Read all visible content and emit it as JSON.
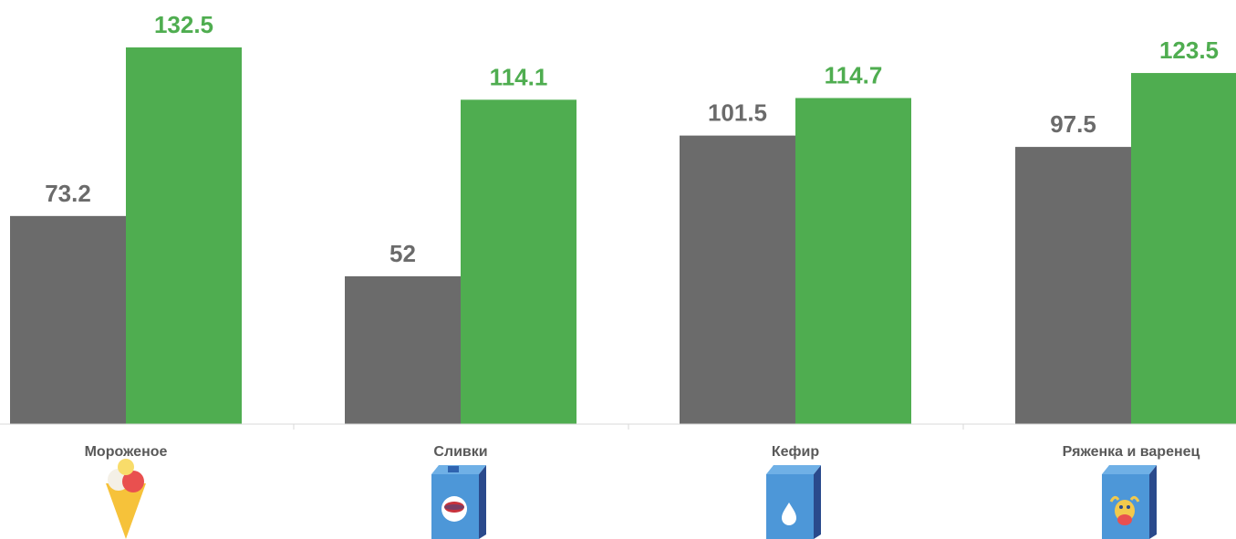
{
  "chart_data": {
    "type": "bar",
    "categories": [
      "Мороженое",
      "Сливки",
      "Кефир",
      "Ряженка и варенец"
    ],
    "category_icons": [
      "ice-cream-icon",
      "cream-carton-icon",
      "kefir-carton-icon",
      "ryazhenka-carton-icon"
    ],
    "series": [
      {
        "values": [
          73.2,
          52,
          101.5,
          97.5
        ],
        "color": "#6b6b6b"
      },
      {
        "values": [
          132.5,
          114.1,
          114.7,
          123.5
        ],
        "color": "#4fad50"
      }
    ],
    "value_labels": [
      [
        "73.2",
        "52",
        "101.5",
        "97.5"
      ],
      [
        "132.5",
        "114.1",
        "114.7",
        "123.5"
      ]
    ],
    "ylim": [
      0,
      132.5
    ],
    "grid": false,
    "legend": "none",
    "axis_color": "#d9d9d9"
  }
}
